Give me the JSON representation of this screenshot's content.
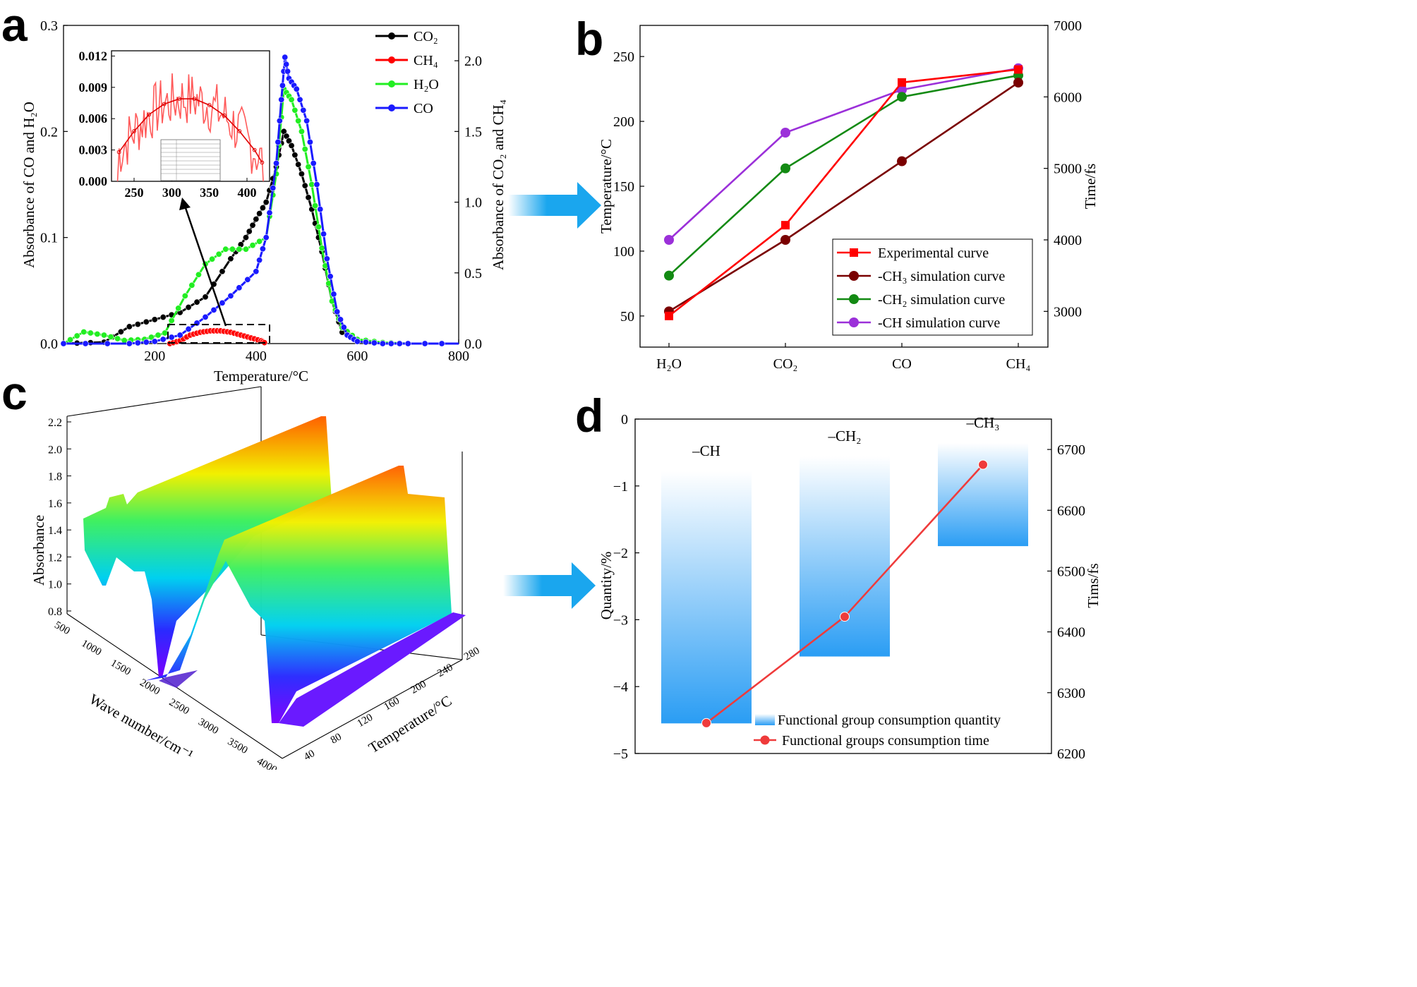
{
  "panel_labels": [
    "a",
    "b",
    "c",
    "d"
  ],
  "colors": {
    "co2": "#000000",
    "ch4": "#ff0000",
    "h2o": "#22ee22",
    "co": "#1a1aff",
    "experimental": "#ff0000",
    "ch3": "#7a0000",
    "ch2": "#138a13",
    "ch": "#9b30d9",
    "arrow": "#1aa6ee",
    "bar": "#2a9df4",
    "time_line": "#ef3b3b"
  },
  "chart_data": [
    {
      "panel": "a",
      "type": "line",
      "xlabel": "Temperature/°C",
      "ylabel_left": "Absorbance of CO and H₂O",
      "ylabel_right": "Absorbance of CO₂ and CH₄",
      "xlim": [
        20,
        800
      ],
      "ylim_left": [
        0,
        0.3
      ],
      "ylim_right": [
        0,
        2.25
      ],
      "xticks": [
        "200",
        "400",
        "600",
        "800"
      ],
      "yticks_left": [
        "0.0",
        "0.1",
        "0.2",
        "0.3"
      ],
      "yticks_right": [
        "0.0",
        "0.5",
        "1.0",
        "1.5",
        "2.0"
      ],
      "legend": [
        "CO₂",
        "CH₄",
        "H₂O",
        "CO"
      ],
      "series": [
        {
          "name": "CO₂",
          "axis": "right",
          "x": [
            20,
            100,
            150,
            200,
            250,
            300,
            350,
            380,
            400,
            420,
            440,
            455,
            470,
            490,
            510,
            530,
            550,
            570,
            600,
            650,
            700,
            800
          ],
          "values": [
            0.0,
            0.01,
            0.12,
            0.17,
            0.22,
            0.33,
            0.6,
            0.75,
            0.88,
            1.0,
            1.25,
            1.5,
            1.4,
            1.2,
            0.95,
            0.65,
            0.3,
            0.08,
            0.02,
            0.0,
            0.0,
            0.0
          ]
        },
        {
          "name": "CH₄",
          "axis": "right",
          "x": [
            230,
            250,
            270,
            290,
            310,
            330,
            350,
            370,
            390,
            410,
            420
          ],
          "values": [
            0.0,
            0.02,
            0.06,
            0.08,
            0.09,
            0.09,
            0.08,
            0.06,
            0.04,
            0.02,
            0.0
          ]
        },
        {
          "name": "H₂O",
          "axis": "left",
          "x": [
            20,
            60,
            100,
            140,
            180,
            220,
            260,
            300,
            340,
            380,
            420,
            440,
            455,
            470,
            490,
            510,
            530,
            550,
            570,
            600,
            650,
            700,
            800
          ],
          "values": [
            0.0,
            0.011,
            0.008,
            0.003,
            0.004,
            0.01,
            0.045,
            0.075,
            0.089,
            0.089,
            0.1,
            0.16,
            0.24,
            0.23,
            0.2,
            0.15,
            0.09,
            0.04,
            0.015,
            0.004,
            0.001,
            0.0,
            0.0
          ]
        },
        {
          "name": "CO",
          "axis": "left",
          "x": [
            20,
            150,
            200,
            250,
            300,
            350,
            400,
            420,
            440,
            450,
            457,
            465,
            480,
            500,
            520,
            540,
            560,
            580,
            600,
            650,
            700,
            800
          ],
          "values": [
            0.0,
            0.0,
            0.002,
            0.008,
            0.025,
            0.045,
            0.068,
            0.1,
            0.17,
            0.23,
            0.27,
            0.25,
            0.24,
            0.21,
            0.15,
            0.08,
            0.03,
            0.008,
            0.002,
            0.0,
            0.0,
            0.0
          ]
        }
      ],
      "inset": {
        "xlim": [
          220,
          430
        ],
        "ylim": [
          0,
          0.0125
        ],
        "xticks": [
          "250",
          "300",
          "350",
          "400"
        ],
        "yticks": [
          "0.000",
          "0.003",
          "0.006",
          "0.009",
          "0.012"
        ],
        "fit_x": [
          230,
          250,
          270,
          290,
          310,
          330,
          350,
          370,
          390,
          410,
          420
        ],
        "fit_y": [
          0.0028,
          0.0048,
          0.0064,
          0.0074,
          0.0079,
          0.0079,
          0.0073,
          0.0063,
          0.0048,
          0.003,
          0.0018
        ]
      }
    },
    {
      "panel": "b",
      "type": "line",
      "ylabel_left": "Temperature/°C",
      "ylabel_right": "Time/fs",
      "categories": [
        "H₂O",
        "CO₂",
        "CO",
        "CH₄"
      ],
      "ylim_left": [
        26,
        274
      ],
      "ylim_right": [
        2500,
        7000
      ],
      "yticks_left": [
        "50",
        "100",
        "150",
        "200",
        "250"
      ],
      "yticks_right": [
        "3000",
        "4000",
        "5000",
        "6000",
        "7000"
      ],
      "legend": [
        "Experimental curve",
        "-CH₃ simulation curve",
        "-CH₂ simulation curve",
        "-CH simulation curve"
      ],
      "series": [
        {
          "name": "Experimental curve",
          "axis": "left",
          "values": [
            50,
            120,
            230,
            240
          ]
        },
        {
          "name": "-CH₃ simulation curve",
          "axis": "right",
          "values": [
            3000,
            4000,
            5100,
            6200
          ]
        },
        {
          "name": "-CH₂ simulation curve",
          "axis": "right",
          "values": [
            3500,
            5000,
            6000,
            6300
          ]
        },
        {
          "name": "-CH simulation curve",
          "axis": "right",
          "values": [
            4000,
            5500,
            6100,
            6400
          ]
        }
      ]
    },
    {
      "panel": "c",
      "type": "area",
      "zlabel": "Absorbance",
      "xlabel": "Wave number/cm⁻¹",
      "ylabel": "Temperature/°C",
      "zticks": [
        "0.8",
        "1.0",
        "1.2",
        "1.4",
        "1.6",
        "1.8",
        "2.0",
        "2.2"
      ],
      "xticks": [
        "500",
        "1000",
        "1500",
        "2000",
        "2500",
        "3000",
        "3500",
        "4000"
      ],
      "yticks": [
        "40",
        "80",
        "120",
        "160",
        "200",
        "240",
        "280"
      ]
    },
    {
      "panel": "d",
      "type": "bar",
      "ylabel_left": "Quantity/%",
      "ylabel_right": "Tims/fs",
      "categories": [
        "–CH",
        "–CH₂",
        "–CH₃"
      ],
      "bar_values": [
        -4.55,
        -3.55,
        -1.9
      ],
      "time_values": [
        6250,
        6425,
        6675
      ],
      "ylim_left": [
        -5,
        0
      ],
      "ylim_right": [
        6200,
        6750
      ],
      "yticks_left": [
        "−5",
        "−4",
        "−3",
        "−2",
        "−1",
        "0"
      ],
      "yticks_right": [
        "6200",
        "6300",
        "6400",
        "6500",
        "6600",
        "6700"
      ],
      "legend": [
        "Functional group consumption quantity",
        "Functional groups consumption time"
      ]
    }
  ]
}
